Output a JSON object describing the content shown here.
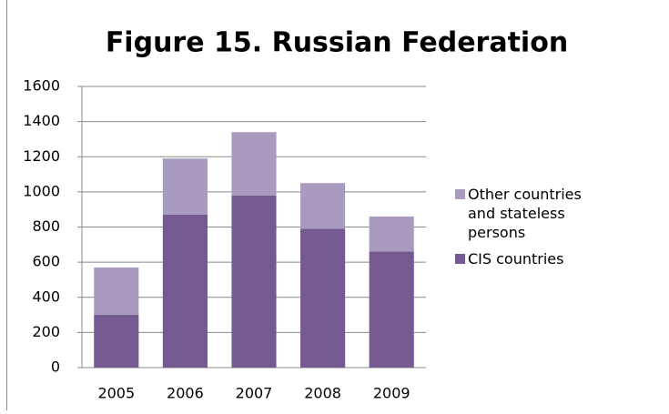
{
  "chart_data": {
    "type": "stacked-bar",
    "title": "Figure 15.   Russian Federation",
    "categories": [
      "2005",
      "2006",
      "2007",
      "2008",
      "2009"
    ],
    "series": [
      {
        "name": "CIS  countries",
        "color": "#745a90",
        "values": [
          300,
          870,
          980,
          790,
          660
        ]
      },
      {
        "name": "Other countries  and stateless persons",
        "color": "#a99bc0",
        "values": [
          270,
          320,
          360,
          260,
          200
        ]
      }
    ],
    "ylim": [
      0,
      1600
    ],
    "yticks": [
      0,
      200,
      400,
      600,
      800,
      1000,
      1200,
      1400,
      1600
    ],
    "grid": true
  }
}
